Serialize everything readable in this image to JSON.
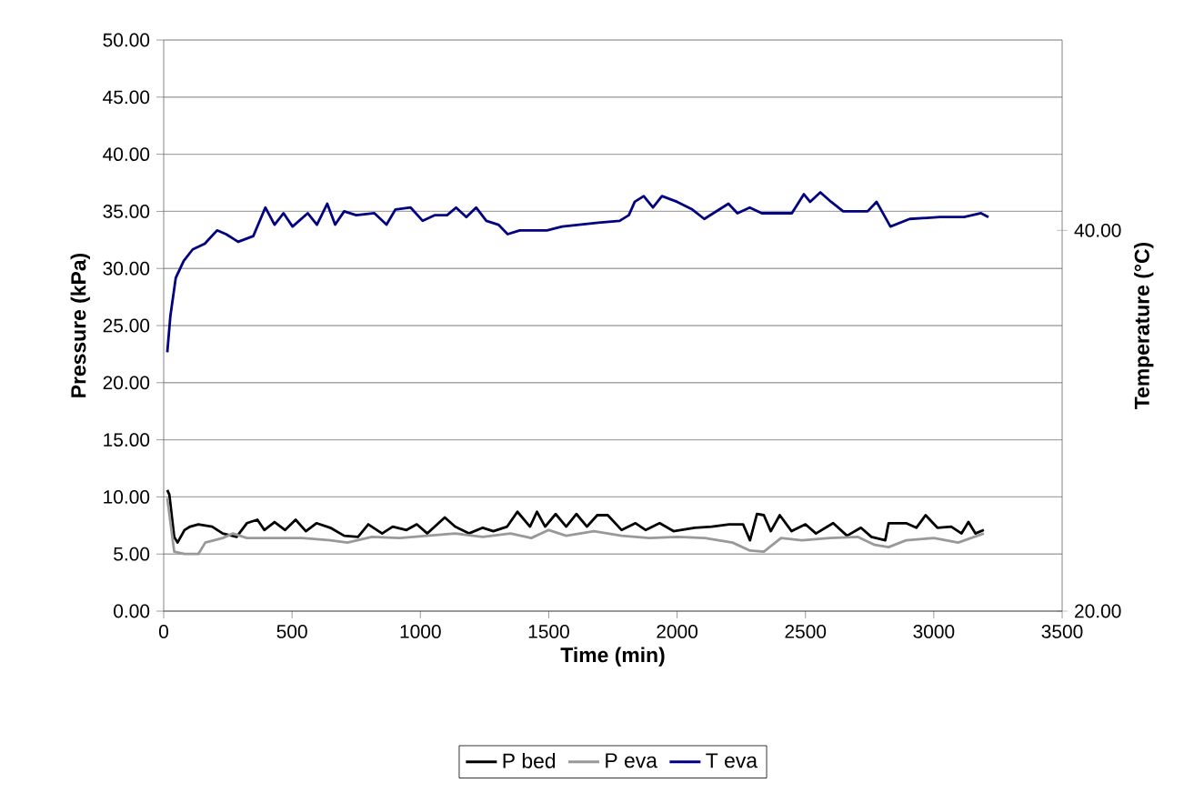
{
  "chart_data": {
    "type": "line",
    "xlabel": "Time (min)",
    "ylabel": "Pressure (kPa)",
    "y2label": "Temperature (°C)",
    "xlim": [
      0,
      3500
    ],
    "xticks": [
      0,
      500,
      1000,
      1500,
      2000,
      2500,
      3000,
      3500
    ],
    "ylim": [
      0,
      50
    ],
    "yticks": [
      {
        "value": 0,
        "label": "0.00"
      },
      {
        "value": 5,
        "label": "5.00"
      },
      {
        "value": 10,
        "label": "10.00"
      },
      {
        "value": 15,
        "label": "15.00"
      },
      {
        "value": 20,
        "label": "20.00"
      },
      {
        "value": 25,
        "label": "25.00"
      },
      {
        "value": 30,
        "label": "30.00"
      },
      {
        "value": 35,
        "label": "35.00"
      },
      {
        "value": 40,
        "label": "40.00"
      },
      {
        "value": 45,
        "label": "45.00"
      },
      {
        "value": 50,
        "label": "50.00"
      }
    ],
    "y2lim": [
      20,
      50
    ],
    "y2ticks": [
      {
        "value": 20,
        "label": "20.00"
      },
      {
        "value": 40,
        "label": "40.00"
      }
    ],
    "grid": "y",
    "legend": "bottom",
    "series": [
      {
        "name": "P bed",
        "color": "#000000",
        "x": [
          14,
          22,
          41,
          54,
          81,
          103,
          135,
          189,
          230,
          284,
          324,
          365,
          392,
          432,
          473,
          514,
          554,
          595,
          649,
          703,
          757,
          797,
          851,
          892,
          946,
          986,
          1027,
          1095,
          1135,
          1189,
          1243,
          1284,
          1338,
          1378,
          1427,
          1454,
          1486,
          1527,
          1568,
          1608,
          1649,
          1689,
          1730,
          1784,
          1838,
          1878,
          1932,
          1986,
          2068,
          2135,
          2203,
          2257,
          2284,
          2311,
          2338,
          2365,
          2400,
          2446,
          2500,
          2541,
          2608,
          2662,
          2716,
          2757,
          2811,
          2824,
          2892,
          2932,
          2968,
          3014,
          3068,
          3108,
          3135,
          3162,
          3195
        ],
        "values": [
          10.6,
          10.2,
          6.5,
          6.0,
          7.1,
          7.4,
          7.6,
          7.4,
          6.8,
          6.5,
          7.7,
          8.0,
          7.1,
          7.8,
          7.1,
          8.0,
          7.0,
          7.7,
          7.3,
          6.6,
          6.5,
          7.6,
          6.8,
          7.4,
          7.1,
          7.6,
          6.8,
          8.2,
          7.4,
          6.8,
          7.3,
          7.0,
          7.4,
          8.7,
          7.4,
          8.7,
          7.4,
          8.5,
          7.4,
          8.5,
          7.4,
          8.4,
          8.4,
          7.1,
          7.7,
          7.1,
          7.7,
          7.0,
          7.3,
          7.4,
          7.6,
          7.6,
          6.2,
          8.5,
          8.4,
          7.0,
          8.4,
          7.0,
          7.6,
          6.8,
          7.7,
          6.6,
          7.3,
          6.5,
          6.2,
          7.7,
          7.7,
          7.3,
          8.4,
          7.3,
          7.4,
          6.8,
          7.8,
          6.8,
          7.1
        ]
      },
      {
        "name": "P eva",
        "color": "#999999",
        "x": [
          14,
          41,
          81,
          135,
          162,
          230,
          270,
          324,
          432,
          541,
          649,
          716,
          811,
          919,
          1027,
          1135,
          1243,
          1351,
          1432,
          1500,
          1568,
          1676,
          1784,
          1892,
          2000,
          2108,
          2216,
          2284,
          2338,
          2405,
          2486,
          2595,
          2703,
          2770,
          2824,
          2892,
          3000,
          3095,
          3195
        ],
        "values": [
          9.9,
          5.2,
          5.0,
          5.0,
          6.0,
          6.4,
          6.8,
          6.4,
          6.4,
          6.4,
          6.2,
          6.0,
          6.5,
          6.4,
          6.6,
          6.8,
          6.5,
          6.8,
          6.4,
          7.1,
          6.6,
          7.0,
          6.6,
          6.4,
          6.5,
          6.4,
          6.0,
          5.3,
          5.2,
          6.4,
          6.2,
          6.4,
          6.5,
          5.8,
          5.6,
          6.2,
          6.4,
          6.0,
          6.8
        ]
      },
      {
        "name": "T eva",
        "color": "#000080",
        "axis": "y2",
        "x": [
          14,
          26,
          47,
          78,
          113,
          160,
          208,
          243,
          290,
          349,
          396,
          432,
          467,
          502,
          561,
          597,
          637,
          668,
          703,
          750,
          821,
          868,
          903,
          962,
          1009,
          1057,
          1104,
          1139,
          1179,
          1217,
          1257,
          1304,
          1340,
          1387,
          1493,
          1552,
          1693,
          1776,
          1812,
          1835,
          1870,
          1906,
          1941,
          2000,
          2059,
          2106,
          2141,
          2200,
          2235,
          2283,
          2330,
          2447,
          2494,
          2518,
          2558,
          2600,
          2647,
          2742,
          2777,
          2831,
          2906,
          3024,
          3118,
          3184,
          3213
        ],
        "values": [
          33.6,
          35.5,
          37.5,
          38.4,
          39.0,
          39.3,
          40.0,
          39.8,
          39.4,
          39.7,
          41.2,
          40.3,
          40.9,
          40.2,
          40.9,
          40.3,
          41.4,
          40.3,
          41.0,
          40.8,
          40.9,
          40.3,
          41.1,
          41.2,
          40.5,
          40.8,
          40.8,
          41.2,
          40.7,
          41.2,
          40.5,
          40.3,
          39.8,
          40.0,
          40.0,
          40.2,
          40.4,
          40.5,
          40.8,
          41.5,
          41.8,
          41.2,
          41.8,
          41.5,
          41.1,
          40.6,
          40.9,
          41.4,
          40.9,
          41.2,
          40.9,
          40.9,
          41.9,
          41.5,
          42.0,
          41.5,
          41.0,
          41.0,
          41.5,
          40.2,
          40.6,
          40.7,
          40.7,
          40.9,
          40.7
        ]
      }
    ]
  }
}
